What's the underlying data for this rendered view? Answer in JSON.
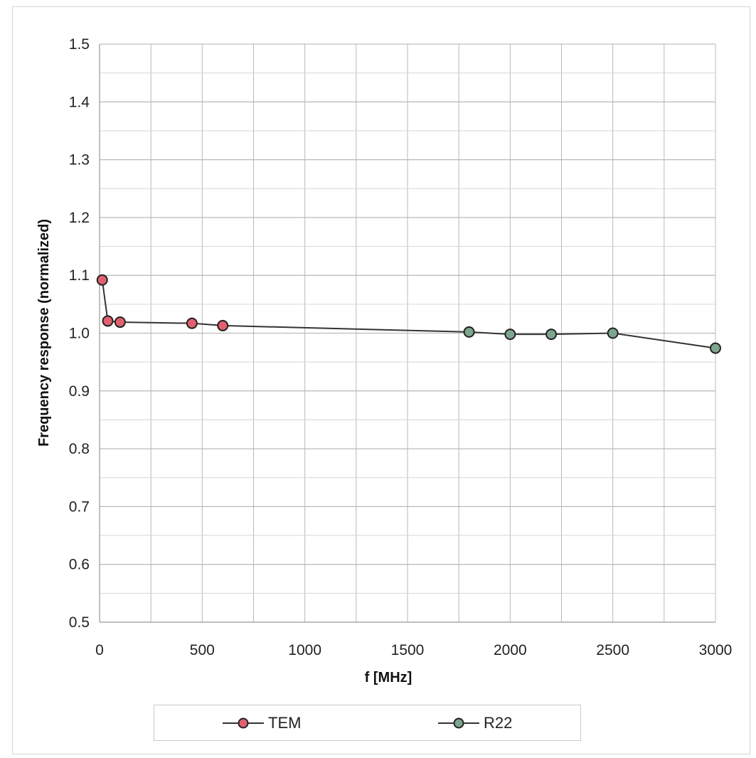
{
  "chart_data": {
    "type": "line",
    "title": "",
    "xlabel": "f [MHz]",
    "ylabel": "Frequency response (normalized)",
    "xlim": [
      0,
      3000
    ],
    "ylim": [
      0.5,
      1.5
    ],
    "x_ticks": [
      "0",
      "500",
      "1000",
      "1500",
      "2000",
      "2500",
      "3000"
    ],
    "y_ticks": [
      "0.5",
      "0.6",
      "0.7",
      "0.8",
      "0.9",
      "1.0",
      "1.1",
      "1.2",
      "1.3",
      "1.4",
      "1.5"
    ],
    "x_tick_values": [
      0,
      500,
      1000,
      1500,
      2000,
      2500,
      3000
    ],
    "y_tick_values": [
      0.5,
      0.6,
      0.7,
      0.8,
      0.9,
      1.0,
      1.1,
      1.2,
      1.3,
      1.4,
      1.5
    ],
    "x_minor_step": 250,
    "y_minor_step": 0.05,
    "grid": true,
    "legend_position": "bottom",
    "line_color": "#333333",
    "series": [
      {
        "name": "TEM",
        "color": "#e0606e",
        "x": [
          13,
          40,
          100,
          450,
          600
        ],
        "y": [
          1.092,
          1.021,
          1.019,
          1.017,
          1.013
        ]
      },
      {
        "name": "R22",
        "color": "#7ea58d",
        "x": [
          1800,
          2000,
          2200,
          2500,
          3000
        ],
        "y": [
          1.002,
          0.998,
          0.998,
          1.0,
          0.974
        ]
      }
    ]
  }
}
